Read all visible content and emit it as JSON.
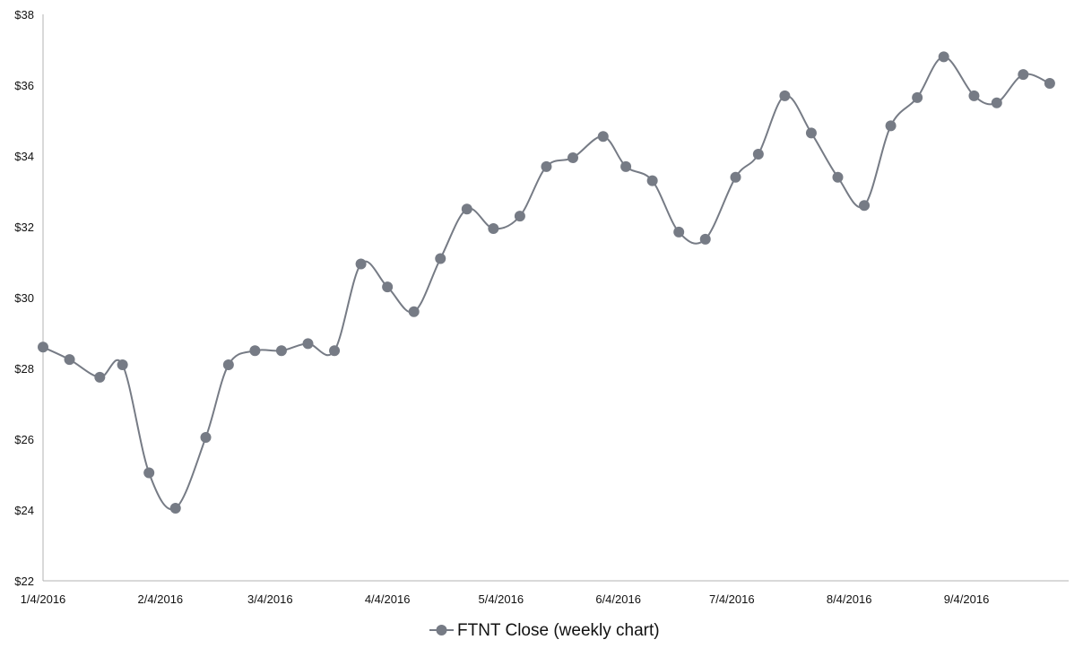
{
  "chart_data": {
    "type": "line",
    "title": "",
    "xlabel": "",
    "ylabel": "",
    "ylim": [
      22,
      38
    ],
    "y_ticks": [
      22,
      24,
      26,
      28,
      30,
      32,
      34,
      36,
      38
    ],
    "y_tick_labels": [
      "$22",
      "$24",
      "$26",
      "$28",
      "$30",
      "$32",
      "$34",
      "$36",
      "$38"
    ],
    "x_range": [
      "2016-01-04",
      "2016-10-01"
    ],
    "x_ticks": [
      "2016-01-04",
      "2016-02-04",
      "2016-03-04",
      "2016-04-04",
      "2016-05-04",
      "2016-06-04",
      "2016-07-04",
      "2016-08-04",
      "2016-09-04"
    ],
    "x_tick_labels": [
      "1/4/2016",
      "2/4/2016",
      "3/4/2016",
      "4/4/2016",
      "5/4/2016",
      "6/4/2016",
      "7/4/2016",
      "8/4/2016",
      "9/4/2016"
    ],
    "grid": false,
    "smoothed": true,
    "legend_position": "bottom",
    "series": [
      {
        "name": "FTNT Close (weekly chart)",
        "color": "#767b85",
        "x": [
          "2016-01-04",
          "2016-01-11",
          "2016-01-19",
          "2016-01-25",
          "2016-02-01",
          "2016-02-08",
          "2016-02-16",
          "2016-02-22",
          "2016-02-29",
          "2016-03-07",
          "2016-03-14",
          "2016-03-21",
          "2016-03-28",
          "2016-04-04",
          "2016-04-11",
          "2016-04-18",
          "2016-04-25",
          "2016-05-02",
          "2016-05-09",
          "2016-05-16",
          "2016-05-23",
          "2016-05-31",
          "2016-06-06",
          "2016-06-13",
          "2016-06-20",
          "2016-06-27",
          "2016-07-05",
          "2016-07-11",
          "2016-07-18",
          "2016-07-25",
          "2016-08-01",
          "2016-08-08",
          "2016-08-15",
          "2016-08-22",
          "2016-08-29",
          "2016-09-06",
          "2016-09-12",
          "2016-09-19",
          "2016-09-26"
        ],
        "values": [
          28.6,
          28.25,
          27.75,
          28.1,
          25.05,
          24.05,
          26.05,
          28.1,
          28.5,
          28.5,
          28.7,
          28.5,
          30.95,
          30.3,
          29.6,
          31.1,
          32.5,
          31.95,
          32.3,
          33.7,
          33.95,
          34.55,
          33.7,
          33.3,
          31.85,
          31.65,
          33.4,
          34.05,
          35.7,
          34.65,
          33.4,
          32.6,
          34.85,
          35.65,
          36.8,
          35.7,
          35.5,
          36.3,
          36.05
        ]
      }
    ]
  }
}
